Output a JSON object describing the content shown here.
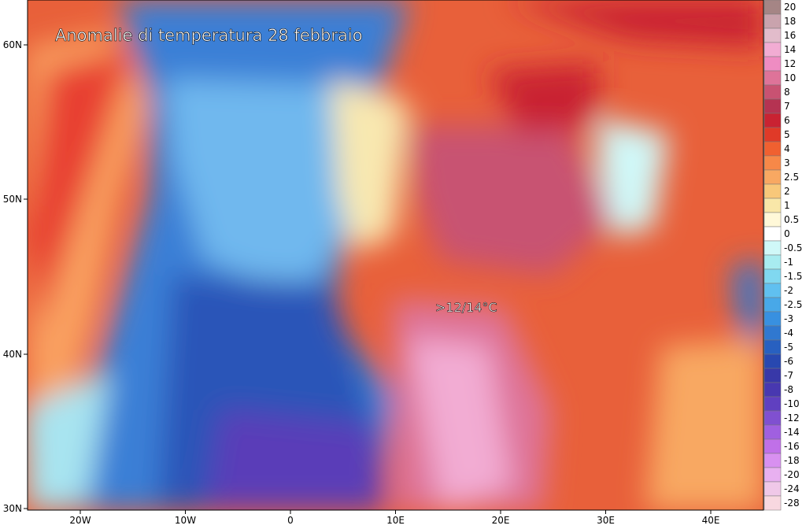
{
  "map": {
    "title": "Anomalie di temperatura 28 febbraio",
    "annotation": ">12/14°C",
    "lat_labels": [
      "60N",
      "50N",
      "40N",
      "30N"
    ],
    "lon_labels": [
      "20W",
      "10W",
      "0",
      "10E",
      "20E",
      "30E",
      "40E"
    ],
    "legend": [
      {
        "label": "20",
        "color": "#a58585"
      },
      {
        "label": "18",
        "color": "#c9a3ad"
      },
      {
        "label": "16",
        "color": "#e2bccb"
      },
      {
        "label": "14",
        "color": "#f2acd3"
      },
      {
        "label": "12",
        "color": "#ef8cc2"
      },
      {
        "label": "10",
        "color": "#de7399"
      },
      {
        "label": "8",
        "color": "#c85272"
      },
      {
        "label": "7",
        "color": "#b53352"
      },
      {
        "label": "6",
        "color": "#c92232"
      },
      {
        "label": "5",
        "color": "#e03a28"
      },
      {
        "label": "4",
        "color": "#f06030"
      },
      {
        "label": "3",
        "color": "#f78848"
      },
      {
        "label": "2.5",
        "color": "#f8a862"
      },
      {
        "label": "2",
        "color": "#f8c87a"
      },
      {
        "label": "1",
        "color": "#f9e7a8"
      },
      {
        "label": "0.5",
        "color": "#fff8d8"
      },
      {
        "label": "0",
        "color": "#ffffff"
      },
      {
        "label": "-0.5",
        "color": "#d0f8f8"
      },
      {
        "label": "-1",
        "color": "#a8ecf0"
      },
      {
        "label": "-1.5",
        "color": "#80d8f0"
      },
      {
        "label": "-2",
        "color": "#60c0f0"
      },
      {
        "label": "-2.5",
        "color": "#48a8e8"
      },
      {
        "label": "-3",
        "color": "#3890e0"
      },
      {
        "label": "-4",
        "color": "#3078d0"
      },
      {
        "label": "-5",
        "color": "#2860c0"
      },
      {
        "label": "-6",
        "color": "#2848b0"
      },
      {
        "label": "-7",
        "color": "#3838a8"
      },
      {
        "label": "-8",
        "color": "#4838b0"
      },
      {
        "label": "-10",
        "color": "#6040c0"
      },
      {
        "label": "-12",
        "color": "#8050d0"
      },
      {
        "label": "-14",
        "color": "#a060e0"
      },
      {
        "label": "-16",
        "color": "#c070e8"
      },
      {
        "label": "-18",
        "color": "#d890f0"
      },
      {
        "label": "-20",
        "color": "#e8b0f0"
      },
      {
        "label": "-24",
        "color": "#f0c8e8"
      },
      {
        "label": "-28",
        "color": "#f8d8e0"
      }
    ]
  }
}
